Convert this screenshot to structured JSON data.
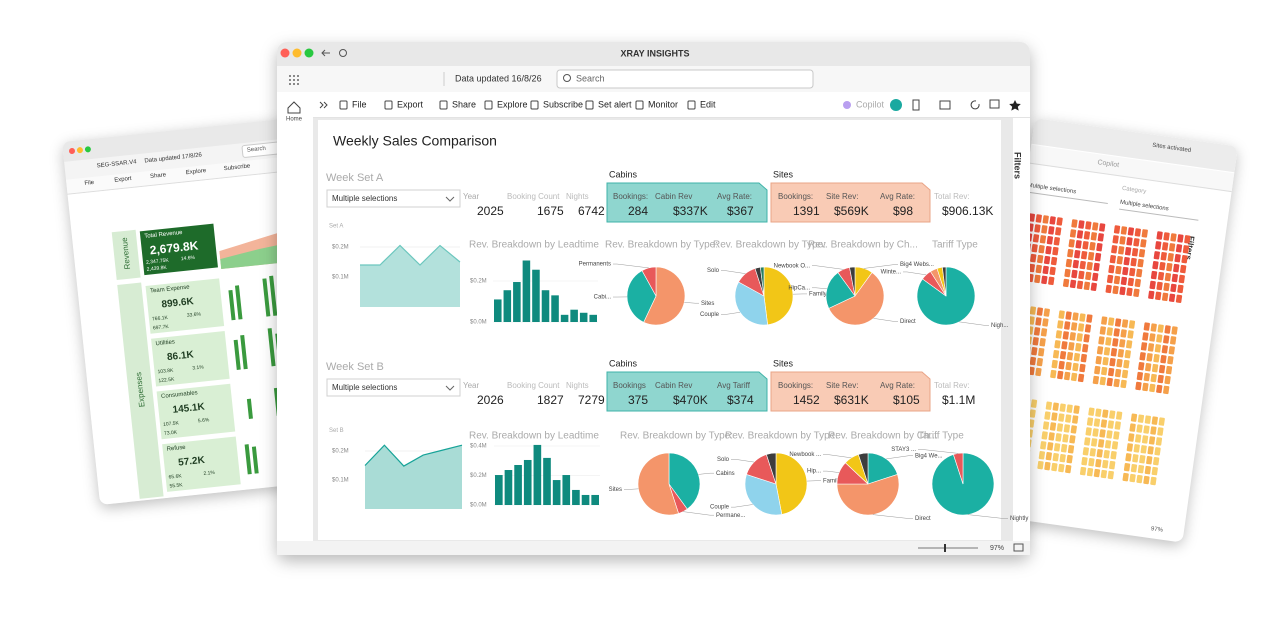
{
  "main_window": {
    "title": "XRAY INSIGHTS",
    "data_updated": "Data updated 16/8/26",
    "search": "Search",
    "home": "Home",
    "toolbar": [
      "File",
      "Export",
      "Share",
      "Explore",
      "Subscribe",
      "Set alert",
      "Monitor",
      "Edit"
    ],
    "copilot": "Copilot",
    "filters": "Filters",
    "zoom": "97%",
    "report": {
      "title": "Weekly Sales Comparison",
      "sets": [
        {
          "label": "Week Set A",
          "selection": "Multiple selections",
          "year_label": "Year",
          "year": "2025",
          "booking_count_label": "Booking Count",
          "booking_count": "1675",
          "nights_label": "Nights",
          "nights": "6742",
          "cabins": {
            "title": "Cabins",
            "labels": [
              "Bookings:",
              "Cabin Rev",
              "Avg Rate:"
            ],
            "values": [
              "284",
              "$337K",
              "$367"
            ]
          },
          "sites": {
            "title": "Sites",
            "labels": [
              "Bookings:",
              "Site Rev:",
              "Avg Rate:"
            ],
            "values": [
              "1391",
              "$569K",
              "$98"
            ]
          },
          "total_label": "Total Rev:",
          "total": "$906.13K",
          "trend": {
            "type": "area",
            "title": "Set A",
            "color": "#b3e1dc",
            "line_color": "#6cc7be",
            "values": [
              140000,
              140000,
              205000,
              140000,
              205000,
              150000
            ],
            "ylim": [
              0,
              250000
            ],
            "yticks": [
              {
                "value": 100000,
                "label": "$0.1M"
              },
              {
                "value": 200000,
                "label": "$0.2M"
              }
            ]
          },
          "leadtime": {
            "type": "bar",
            "title": "Rev. Breakdown by Leadtime",
            "color": "#0f8a7e",
            "values": [
              110000,
              155000,
              195000,
              300000,
              255000,
              155000,
              130000,
              35000,
              60000,
              45000,
              35000
            ],
            "ylim": [
              0,
              320000
            ],
            "yticks": [
              {
                "value": 0,
                "label": "$0.0M"
              },
              {
                "value": 200000,
                "label": "$0.2M"
              }
            ]
          },
          "pies": [
            {
              "type": "pie",
              "title": "Rev. Breakdown by Type:",
              "categories": [
                "Sites",
                "Cabi...",
                "Permanents"
              ],
              "values": [
                57,
                35,
                8
              ],
              "colors": [
                "#f4956a",
                "#1bb0a3",
                "#e8595a"
              ]
            },
            {
              "type": "pie",
              "title": "Rev. Breakdown by Type:",
              "categories": [
                "Family",
                "Couple",
                "Solo",
                null,
                null
              ],
              "values": [
                48,
                35,
                12,
                3,
                2
              ],
              "colors": [
                "#f2c617",
                "#8fd3ec",
                "#e8595a",
                "#3d3d3d",
                "#2a7f62"
              ]
            },
            {
              "type": "pie",
              "title": "Rev. Breakdown by Ch...",
              "categories": [
                "Big4 Webs...",
                "Direct",
                "HipCa...",
                "Newbook O...",
                null
              ],
              "values": [
                10,
                58,
                22,
                7,
                3
              ],
              "colors": [
                "#f2c617",
                "#f4956a",
                "#1bb0a3",
                "#e8595a",
                "#3d3d3d"
              ]
            },
            {
              "type": "pie",
              "title": "Tariff Type",
              "categories": [
                "Nigh...",
                "Winte...",
                null,
                null,
                null
              ],
              "values": [
                85,
                6,
                4,
                3,
                2
              ],
              "colors": [
                "#1bb0a3",
                "#e8595a",
                "#f4956a",
                "#f2c617",
                "#3d3d3d"
              ]
            }
          ]
        },
        {
          "label": "Week Set B",
          "selection": "Multiple selections",
          "year_label": "Year",
          "year": "2026",
          "booking_count_label": "Booking Count",
          "booking_count": "1827",
          "nights_label": "Nights",
          "nights": "7279",
          "cabins": {
            "title": "Cabins",
            "labels": [
              "Bookings",
              "Cabin Rev",
              "Avg Tariff"
            ],
            "values": [
              "375",
              "$470K",
              "$374"
            ]
          },
          "sites": {
            "title": "Sites",
            "labels": [
              "Bookings:",
              "Site Rev:",
              "Avg Rate:"
            ],
            "values": [
              "1452",
              "$631K",
              "$105"
            ]
          },
          "total_label": "Total Rev:",
          "total": "$1.1M",
          "trend": {
            "type": "area",
            "title": "Set B",
            "color": "#a9dcd6",
            "line_color": "#17a398",
            "values": [
              150000,
              220000,
              148000,
              186000,
              203000,
              220000
            ],
            "ylim": [
              0,
              250000
            ],
            "yticks": [
              {
                "value": 100000,
                "label": "$0.1M"
              },
              {
                "value": 200000,
                "label": "$0.2M"
              }
            ]
          },
          "leadtime": {
            "type": "bar",
            "title": "Rev. Breakdown by Leadtime",
            "color": "#0f8a7e",
            "values": [
              203000,
              237000,
              271000,
              305000,
              407000,
              319000,
              169000,
              203000,
              102000,
              68000,
              68000
            ],
            "ylim": [
              0,
              420000
            ],
            "yticks": [
              {
                "value": 0,
                "label": "$0.0M"
              },
              {
                "value": 200000,
                "label": "$0.2M"
              },
              {
                "value": 400000,
                "label": "$0.4M"
              }
            ]
          },
          "pies": [
            {
              "type": "pie",
              "title": "Rev. Breakdown by Type:",
              "categories": [
                "Cabins",
                "Permane...",
                "Sites"
              ],
              "values": [
                40,
                5,
                55
              ],
              "colors": [
                "#1bb0a3",
                "#e8595a",
                "#f4956a"
              ]
            },
            {
              "type": "pie",
              "title": "Rev. Breakdown by Type:",
              "categories": [
                "Family",
                "Couple",
                "Solo",
                null
              ],
              "values": [
                47,
                33,
                15,
                5
              ],
              "colors": [
                "#f2c617",
                "#8fd3ec",
                "#e8595a",
                "#3d3d3d"
              ]
            },
            {
              "type": "pie",
              "title": "Rev. Breakdown by Ch...",
              "categories": [
                "Big4 We...",
                "Direct",
                "Hip...",
                "Newbook ...",
                null
              ],
              "values": [
                20,
                55,
                12,
                8,
                5
              ],
              "colors": [
                "#1bb0a3",
                "#f4956a",
                "#e8595a",
                "#f2c617",
                "#3d3d3d"
              ]
            },
            {
              "type": "pie",
              "title": "Tariff Type",
              "categories": [
                "Nightly",
                "STAY3 ..."
              ],
              "values": [
                95,
                5
              ],
              "colors": [
                "#1bb0a3",
                "#e8595a"
              ]
            }
          ]
        }
      ]
    }
  },
  "left_window": {
    "title": "SEG-SSAR.V4",
    "data_updated": "Data updated 17/8/26",
    "search": "Search",
    "toolbar": [
      "File",
      "Export",
      "Share",
      "Explore",
      "Subscribe"
    ],
    "sections": [
      "Revenue",
      "Expenses"
    ],
    "cards": [
      {
        "title": "Total Revenue",
        "value": "2,679.8K",
        "details": [
          "2,347.75K",
          "14.6%",
          "2,439.8K"
        ]
      },
      {
        "title": "Team Expense",
        "value": "899.6K",
        "details": [
          "766.1K",
          "33.6%",
          "697.7K"
        ]
      },
      {
        "title": "Utilities",
        "value": "86.1K",
        "details": [
          "103.8K",
          "3.1%",
          "122.5K"
        ]
      },
      {
        "title": "Consumables",
        "value": "145.1K",
        "details": [
          "107.5K",
          "5.6%",
          "73.0K"
        ]
      },
      {
        "title": "Refuse",
        "value": "57.2K",
        "details": [
          "65.6K",
          "2.1%",
          "55.5K"
        ]
      }
    ]
  },
  "right_window": {
    "status": "Sites activated",
    "copilot": "Copilot",
    "selection": "Multiple selections",
    "category_label": "Category",
    "category_selection": "Multiple selections",
    "filters": "Filters",
    "zoom": "97%"
  }
}
